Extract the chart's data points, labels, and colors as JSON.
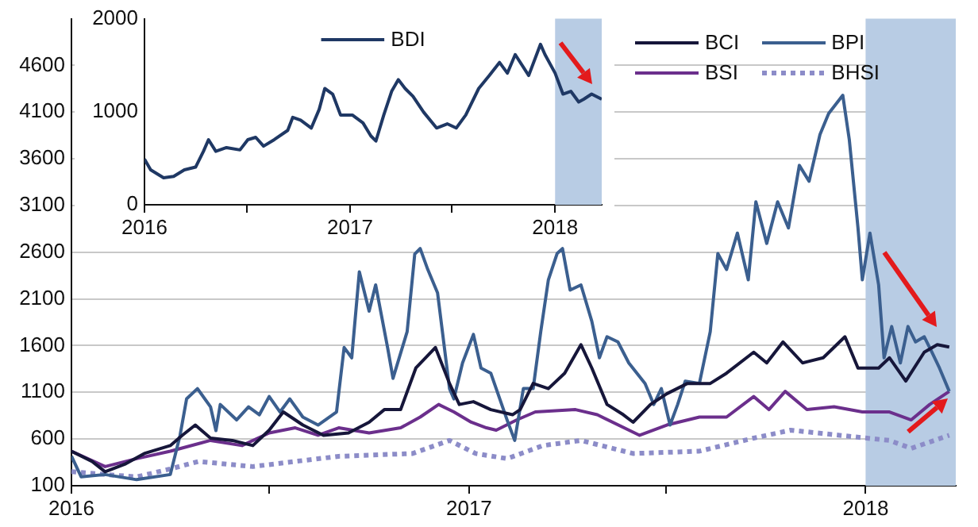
{
  "chart_data": [
    {
      "type": "line",
      "xlim": [
        "2016",
        "2018-03-25"
      ],
      "xticks": [
        "2016",
        {
          "value": "2016-07",
          "label": null
        },
        "2017",
        {
          "value": "2017-07",
          "label": null
        },
        "2018"
      ],
      "ylim": [
        100,
        5100
      ],
      "yticks": [
        100,
        600,
        1100,
        1600,
        2100,
        2600,
        3100,
        3600,
        4100,
        4600
      ],
      "grid": "y",
      "legend": "top right",
      "marker": "none",
      "bands": [
        {
          "axis": "x",
          "from": "2018-01-01",
          "to": "2018-03-25",
          "color": "#b8cce4"
        }
      ],
      "series": [
        {
          "name": "BCI",
          "color": "#16163a",
          "x": [
            "2016-01-01",
            "2016-01-20",
            "2016-02-01",
            "2016-02-20",
            "2016-03-08",
            "2016-04-01",
            "2016-04-12",
            "2016-04-24",
            "2016-05-08",
            "2016-05-28",
            "2016-06-16",
            "2016-07-01",
            "2016-07-14",
            "2016-08-01",
            "2016-08-20",
            "2016-09-12",
            "2016-10-01",
            "2016-10-15",
            "2016-10-30",
            "2016-11-13",
            "2016-11-27",
            "2016-12-01",
            "2016-12-14",
            "2016-12-23",
            "2017-01-05",
            "2017-01-21",
            "2017-02-10",
            "2017-02-17",
            "2017-03-01",
            "2017-03-15",
            "2017-03-30",
            "2017-04-14",
            "2017-04-24",
            "2017-05-08",
            "2017-05-23",
            "2017-06-01",
            "2017-06-17",
            "2017-07-02",
            "2017-07-21",
            "2017-08-11",
            "2017-08-26",
            "2017-09-20",
            "2017-10-02",
            "2017-10-17",
            "2017-11-04",
            "2017-11-23",
            "2017-12-13",
            "2017-12-25",
            "2018-01-13",
            "2018-01-23",
            "2018-02-07",
            "2018-02-24",
            "2018-03-08",
            "2018-03-19"
          ],
          "values": [
            470,
            360,
            250,
            335,
            445,
            530,
            640,
            750,
            610,
            585,
            530,
            695,
            890,
            750,
            640,
            665,
            780,
            915,
            915,
            1360,
            1530,
            1580,
            1195,
            970,
            1000,
            915,
            860,
            915,
            1195,
            1140,
            1305,
            1610,
            1360,
            970,
            860,
            780,
            970,
            1085,
            1195,
            1195,
            1305,
            1530,
            1415,
            1640,
            1415,
            1470,
            1695,
            1360,
            1360,
            1470,
            1220,
            1530,
            1610,
            1585
          ]
        },
        {
          "name": "BPI",
          "color": "#3b5f8f",
          "x": [
            "2016-01-01",
            "2016-01-10",
            "2016-02-01",
            "2016-03-01",
            "2016-04-01",
            "2016-04-10",
            "2016-04-16",
            "2016-04-26",
            "2016-05-08",
            "2016-05-13",
            "2016-05-17",
            "2016-06-01",
            "2016-06-12",
            "2016-06-22",
            "2016-07-01",
            "2016-07-11",
            "2016-07-20",
            "2016-08-01",
            "2016-08-15",
            "2016-09-01",
            "2016-09-08",
            "2016-09-15",
            "2016-09-22",
            "2016-10-01",
            "2016-10-07",
            "2016-10-18",
            "2016-10-23",
            "2016-11-05",
            "2016-11-12",
            "2016-11-17",
            "2016-11-24",
            "2016-12-03",
            "2016-12-14",
            "2016-12-18",
            "2016-12-26",
            "2017-01-05",
            "2017-01-12",
            "2017-01-21",
            "2017-02-05",
            "2017-02-12",
            "2017-02-20",
            "2017-03-01",
            "2017-03-08",
            "2017-03-15",
            "2017-03-23",
            "2017-03-28",
            "2017-04-04",
            "2017-04-14",
            "2017-04-24",
            "2017-05-01",
            "2017-05-08",
            "2017-05-18",
            "2017-05-28",
            "2017-06-12",
            "2017-06-20",
            "2017-06-27",
            "2017-07-05",
            "2017-07-12",
            "2017-07-19",
            "2017-08-01",
            "2017-08-11",
            "2017-08-18",
            "2017-08-26",
            "2017-09-05",
            "2017-09-15",
            "2017-09-22",
            "2017-10-02",
            "2017-10-12",
            "2017-10-22",
            "2017-11-01",
            "2017-11-10",
            "2017-11-20",
            "2017-11-28",
            "2017-12-11",
            "2017-12-17",
            "2017-12-25",
            "2017-12-29",
            "2018-01-05",
            "2018-01-13",
            "2018-01-18",
            "2018-01-25",
            "2018-02-02",
            "2018-02-09",
            "2018-02-16",
            "2018-02-24",
            "2018-03-03",
            "2018-03-10",
            "2018-03-19"
          ],
          "values": [
            417,
            195,
            220,
            165,
            220,
            640,
            1030,
            1140,
            945,
            690,
            970,
            805,
            945,
            860,
            1055,
            890,
            1030,
            835,
            750,
            890,
            1580,
            1470,
            2390,
            1970,
            2250,
            1580,
            1250,
            1750,
            2580,
            2640,
            2415,
            2165,
            1140,
            1030,
            1415,
            1720,
            1360,
            1305,
            805,
            585,
            1140,
            1140,
            1750,
            2305,
            2585,
            2640,
            2195,
            2250,
            1860,
            1470,
            1695,
            1640,
            1415,
            1195,
            970,
            1140,
            750,
            970,
            1220,
            1195,
            1750,
            2585,
            2415,
            2805,
            2305,
            3140,
            2695,
            3140,
            2860,
            3530,
            3360,
            3860,
            4085,
            4280,
            3805,
            2860,
            2305,
            2805,
            2250,
            1470,
            1805,
            1415,
            1805,
            1640,
            1695,
            1530,
            1360,
            1110
          ]
        },
        {
          "name": "BSI",
          "color": "#6b2f8c",
          "x": [
            "2016-01-01",
            "2016-02-01",
            "2016-03-01",
            "2016-04-01",
            "2016-05-08",
            "2016-06-06",
            "2016-07-01",
            "2016-07-25",
            "2016-08-15",
            "2016-09-03",
            "2016-10-01",
            "2016-10-30",
            "2016-11-17",
            "2016-12-04",
            "2016-12-18",
            "2017-01-03",
            "2017-01-17",
            "2017-01-26",
            "2017-02-14",
            "2017-03-03",
            "2017-04-09",
            "2017-04-29",
            "2017-06-07",
            "2017-07-02",
            "2017-08-01",
            "2017-08-26",
            "2017-09-20",
            "2017-10-04",
            "2017-10-19",
            "2017-11-08",
            "2017-12-03",
            "2017-12-29",
            "2018-01-23",
            "2018-02-12",
            "2018-03-01",
            "2018-03-19"
          ],
          "values": [
            470,
            305,
            390,
            470,
            585,
            530,
            665,
            720,
            640,
            720,
            665,
            720,
            835,
            970,
            890,
            780,
            720,
            695,
            805,
            890,
            915,
            860,
            640,
            750,
            835,
            835,
            1055,
            915,
            1110,
            915,
            945,
            890,
            890,
            805,
            970,
            1110
          ]
        },
        {
          "name": "BHSI",
          "color": "#8c8cc8",
          "line_style": "dotted",
          "x": [
            "2016-01-01",
            "2016-02-01",
            "2016-03-01",
            "2016-04-01",
            "2016-04-27",
            "2016-06-16",
            "2016-07-25",
            "2016-09-03",
            "2016-11-10",
            "2016-12-14",
            "2017-01-07",
            "2017-02-05",
            "2017-03-10",
            "2017-04-14",
            "2017-06-01",
            "2017-08-01",
            "2017-09-20",
            "2017-10-24",
            "2017-12-08",
            "2018-01-23",
            "2018-02-12",
            "2018-03-19"
          ],
          "values": [
            250,
            220,
            195,
            280,
            360,
            305,
            360,
            415,
            445,
            585,
            445,
            390,
            530,
            585,
            445,
            470,
            610,
            695,
            640,
            585,
            500,
            640
          ]
        }
      ]
    },
    {
      "type": "line",
      "xlim": [
        "2016",
        "2018-03-25"
      ],
      "xticks": [
        "2016",
        {
          "value": "2016-07",
          "label": null
        },
        "2017",
        {
          "value": "2017-07",
          "label": null
        },
        "2018"
      ],
      "ylim": [
        0,
        2000
      ],
      "yticks": [
        0,
        1000,
        2000
      ],
      "grid": false,
      "legend": "top",
      "marker": "none",
      "bands": [
        {
          "axis": "x",
          "from": "2018-01-01",
          "to": "2018-03-25",
          "color": "#b8cce4"
        }
      ],
      "series": [
        {
          "name": "BDI",
          "color": "#1f3864",
          "x": [
            "2016-01-01",
            "2016-01-12",
            "2016-02-04",
            "2016-02-22",
            "2016-03-12",
            "2016-04-01",
            "2016-04-15",
            "2016-04-24",
            "2016-05-07",
            "2016-05-26",
            "2016-06-19",
            "2016-07-03",
            "2016-07-17",
            "2016-07-31",
            "2016-08-19",
            "2016-09-12",
            "2016-09-21",
            "2016-10-05",
            "2016-10-24",
            "2016-11-07",
            "2016-11-17",
            "2016-12-01",
            "2016-12-15",
            "2017-01-05",
            "2017-01-24",
            "2017-02-07",
            "2017-02-16",
            "2017-03-02",
            "2017-03-16",
            "2017-03-28",
            "2017-04-09",
            "2017-04-23",
            "2017-05-12",
            "2017-06-04",
            "2017-06-23",
            "2017-07-09",
            "2017-07-26",
            "2017-08-18",
            "2017-09-06",
            "2017-09-24",
            "2017-10-08",
            "2017-10-22",
            "2017-11-15",
            "2017-12-06",
            "2017-12-14",
            "2018-01-01",
            "2018-01-15",
            "2018-01-29",
            "2018-02-12",
            "2018-02-21",
            "2018-03-07",
            "2018-03-25"
          ],
          "values": [
            490,
            375,
            290,
            305,
            375,
            405,
            575,
            700,
            575,
            615,
            590,
            700,
            725,
            630,
            700,
            800,
            940,
            910,
            825,
            1025,
            1250,
            1190,
            965,
            965,
            880,
            740,
            685,
            965,
            1220,
            1345,
            1250,
            1165,
            995,
            825,
            870,
            825,
            965,
            1250,
            1390,
            1530,
            1415,
            1615,
            1390,
            1725,
            1615,
            1415,
            1190,
            1220,
            1105,
            1135,
            1190,
            1135
          ]
        }
      ]
    }
  ]
}
